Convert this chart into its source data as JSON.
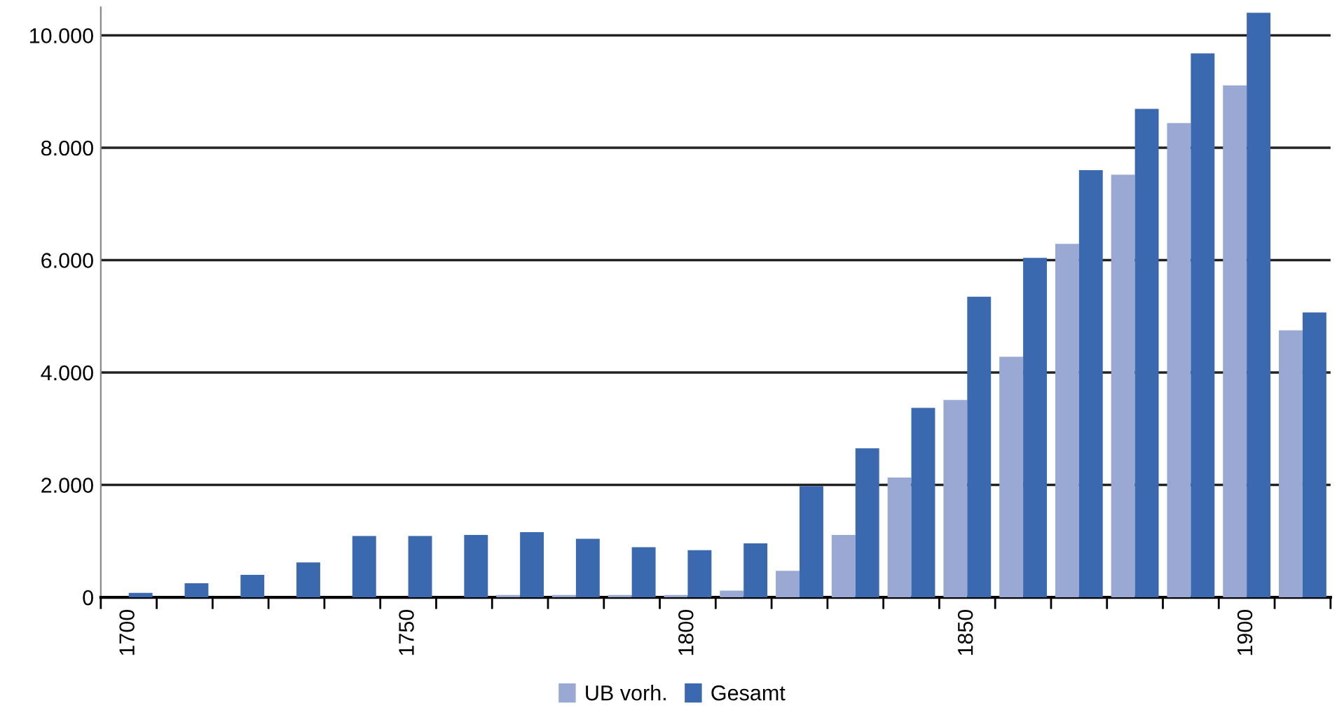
{
  "chart_data": {
    "type": "bar",
    "categories": [
      "1700",
      null,
      null,
      null,
      null,
      "1750",
      null,
      null,
      null,
      null,
      "1800",
      null,
      null,
      null,
      null,
      "1850",
      null,
      null,
      null,
      null,
      "1900",
      null
    ],
    "series": [
      {
        "name": "UB vorh.",
        "color": "#99a9d4",
        "values": [
          0,
          0,
          0,
          0,
          0,
          0,
          0,
          40,
          40,
          40,
          40,
          120,
          470,
          1110,
          2130,
          3510,
          4280,
          6290,
          7520,
          8440,
          9110,
          4750
        ]
      },
      {
        "name": "Gesamt",
        "color": "#3b69b0",
        "values": [
          80,
          250,
          400,
          620,
          1090,
          1090,
          1110,
          1160,
          1040,
          890,
          840,
          960,
          1980,
          2650,
          3370,
          5350,
          6040,
          7600,
          8690,
          9680,
          10400,
          5070
        ]
      }
    ],
    "ylim": [
      0,
      10500
    ],
    "yticks": [
      {
        "value": 0,
        "label": "0"
      },
      {
        "value": 2000,
        "label": "2.000"
      },
      {
        "value": 4000,
        "label": "4.000"
      },
      {
        "value": 6000,
        "label": "6.000"
      },
      {
        "value": 8000,
        "label": "8.000"
      },
      {
        "value": 10000,
        "label": "10.000"
      }
    ],
    "grid": "y",
    "legend": "bottom"
  }
}
